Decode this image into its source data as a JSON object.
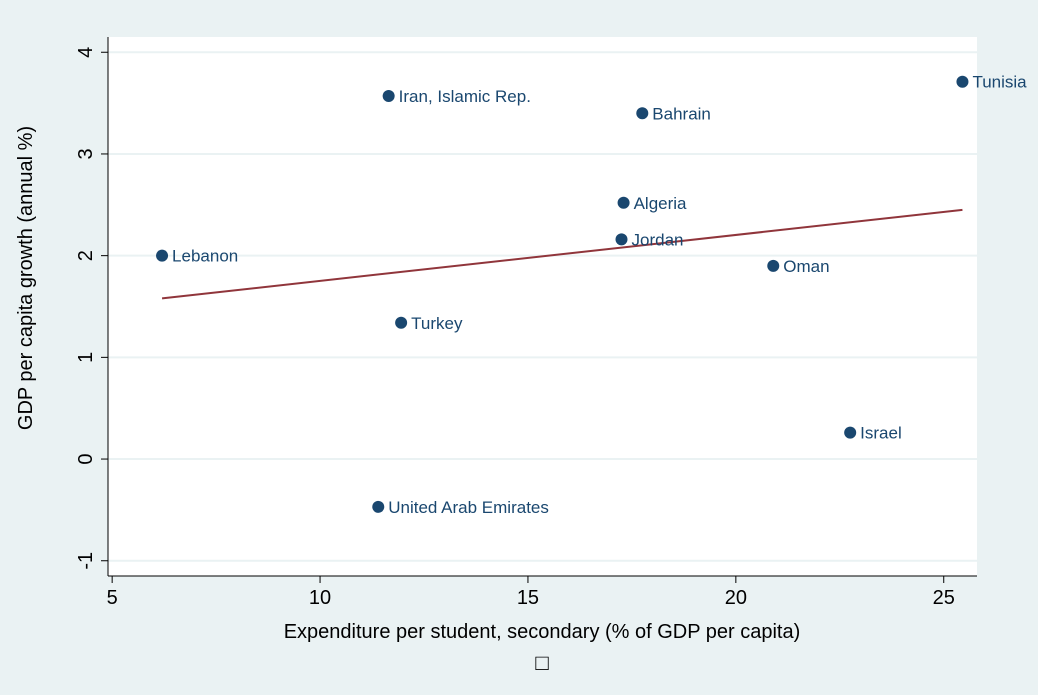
{
  "chart_data": {
    "type": "scatter",
    "title": "",
    "xlabel": "Expenditure per student, secondary (% of GDP per capita)",
    "ylabel": "GDP per capita growth (annual %)",
    "xlim": [
      4.9,
      25.8
    ],
    "ylim": [
      -1.15,
      4.15
    ],
    "xticks": [
      5,
      10,
      15,
      20,
      25
    ],
    "yticks": [
      -1,
      0,
      1,
      2,
      3,
      4
    ],
    "xtick_labels": [
      "5",
      "10",
      "15",
      "20",
      "25"
    ],
    "ytick_labels": [
      "-1",
      "0",
      "1",
      "2",
      "3",
      "4"
    ],
    "grid": "horizontal",
    "legend_symbol": "□",
    "colors": {
      "outer_background": "#eaf2f3",
      "plot_background": "#ffffff",
      "grid": "#eaf2f3",
      "point": "#1a476f",
      "fit_line": "#90353b",
      "axis": "#000000",
      "label_text": "#1a476f"
    },
    "points": [
      {
        "label": "Tunisia",
        "x": 25.45,
        "y": 3.71
      },
      {
        "label": "Iran, Islamic Rep.",
        "x": 11.65,
        "y": 3.57
      },
      {
        "label": "Bahrain",
        "x": 17.75,
        "y": 3.4
      },
      {
        "label": "Algeria",
        "x": 17.3,
        "y": 2.52
      },
      {
        "label": "Jordan",
        "x": 17.25,
        "y": 2.16
      },
      {
        "label": "Lebanon",
        "x": 6.2,
        "y": 2.0
      },
      {
        "label": "Oman",
        "x": 20.9,
        "y": 1.9
      },
      {
        "label": "Turkey",
        "x": 11.95,
        "y": 1.34
      },
      {
        "label": "Israel",
        "x": 22.75,
        "y": 0.26
      },
      {
        "label": "United Arab Emirates",
        "x": 11.4,
        "y": -0.47
      }
    ],
    "fit_line": {
      "x": [
        6.2,
        25.45
      ],
      "y": [
        1.58,
        2.45
      ]
    }
  }
}
